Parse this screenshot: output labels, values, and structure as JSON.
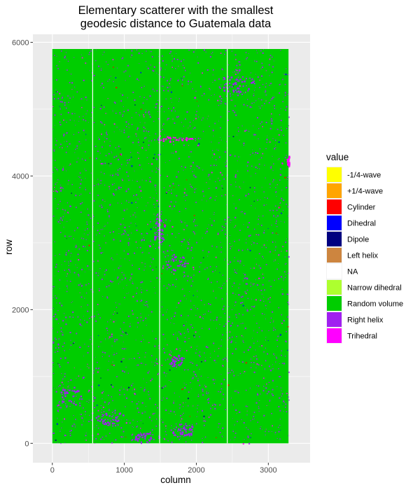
{
  "chart_data": {
    "type": "heatmap",
    "title_lines": [
      "Elementary scatterer with the smallest",
      "geodesic distance to Guatemala data"
    ],
    "xlabel": "column",
    "ylabel": "row",
    "xlim": [
      -270,
      3580
    ],
    "ylim": [
      -290,
      6120
    ],
    "x_ticks": [
      0,
      1000,
      2000,
      3000
    ],
    "x_tick_labels": [
      "0",
      "1000",
      "2000",
      "3000"
    ],
    "y_ticks": [
      0,
      2000,
      4000,
      6000
    ],
    "y_tick_labels": [
      "0",
      "2000",
      "4000",
      "6000"
    ],
    "image_extent": {
      "x": [
        0,
        3280
      ],
      "y": [
        0,
        5900
      ]
    },
    "stripe_columns": [
      560,
      1490,
      2430
    ],
    "dominant_value": "Random volume",
    "secondary_values": [
      "Right helix",
      "Trihedral"
    ],
    "grid": true,
    "legend": {
      "title": "value",
      "position": "right",
      "entries": [
        {
          "label": "-1/4-wave",
          "color": "#FFFF00"
        },
        {
          "label": "+1/4-wave",
          "color": "#FFA500"
        },
        {
          "label": "Cylinder",
          "color": "#FF0000"
        },
        {
          "label": "Dihedral",
          "color": "#0000FF"
        },
        {
          "label": "Dipole",
          "color": "#000080"
        },
        {
          "label": "Left helix",
          "color": "#CD853F"
        },
        {
          "label": "NA",
          "color": "#FFFFFF"
        },
        {
          "label": "Narrow dihedral",
          "color": "#ADFF2F"
        },
        {
          "label": "Random volume",
          "color": "#00CD00"
        },
        {
          "label": "Right helix",
          "color": "#A020F0"
        },
        {
          "label": "Trihedral",
          "color": "#FF00FF"
        }
      ]
    }
  },
  "colors": {
    "panel_bg": "#EBEBEB",
    "grid_major": "#FFFFFF"
  }
}
